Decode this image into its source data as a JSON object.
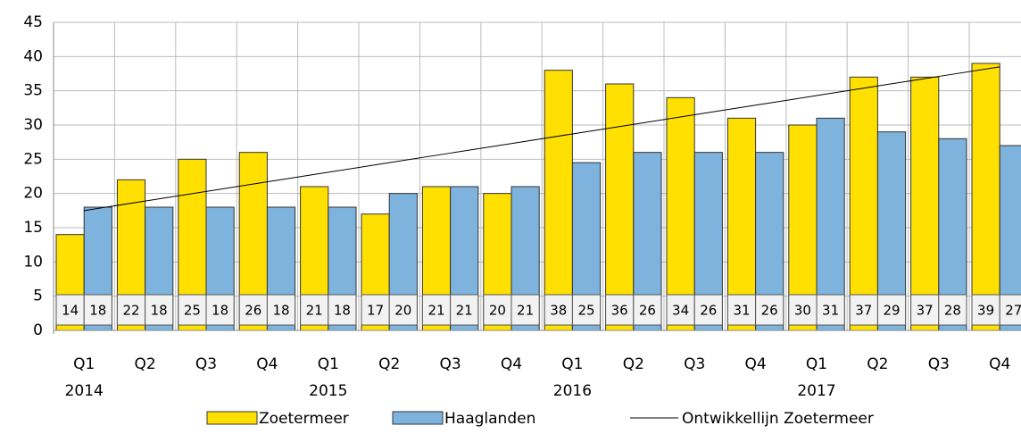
{
  "chart_data": {
    "type": "bar",
    "categories": [
      "Q1",
      "Q2",
      "Q3",
      "Q4",
      "Q1",
      "Q2",
      "Q3",
      "Q4",
      "Q1",
      "Q2",
      "Q3",
      "Q4",
      "Q1",
      "Q2",
      "Q3",
      "Q4"
    ],
    "category_groups": [
      "2014",
      "2015",
      "2016",
      "2017"
    ],
    "series": [
      {
        "name": "Zoetermeer",
        "color": "#ffe000",
        "values": [
          14,
          22,
          25,
          26,
          21,
          17,
          21,
          20,
          38,
          36,
          34,
          31,
          30,
          37,
          37,
          39
        ]
      },
      {
        "name": "Haaglanden",
        "color": "#7db3dc",
        "values": [
          18,
          18,
          18,
          18,
          18,
          20,
          21,
          21,
          24.5,
          26,
          26,
          26,
          31,
          29,
          28,
          27
        ],
        "value_labels": [
          "18",
          "18",
          "18",
          "18",
          "18",
          "20",
          "21",
          "21",
          "25",
          "26",
          "26",
          "26",
          "31",
          "29",
          "28",
          "27"
        ]
      },
      {
        "name": "Ontwikkellijn Zoetermeer",
        "type": "line",
        "color": "#000000",
        "values": [
          17.5,
          18.9,
          20.3,
          21.7,
          23.1,
          24.5,
          25.9,
          27.3,
          28.7,
          30.1,
          31.5,
          32.9,
          34.3,
          35.7,
          37.1,
          38.5
        ]
      }
    ],
    "ylim": [
      0,
      45
    ],
    "yticks": [
      0,
      5,
      10,
      15,
      20,
      25,
      30,
      35,
      40,
      45
    ],
    "grid": true,
    "legend": "bottom"
  }
}
